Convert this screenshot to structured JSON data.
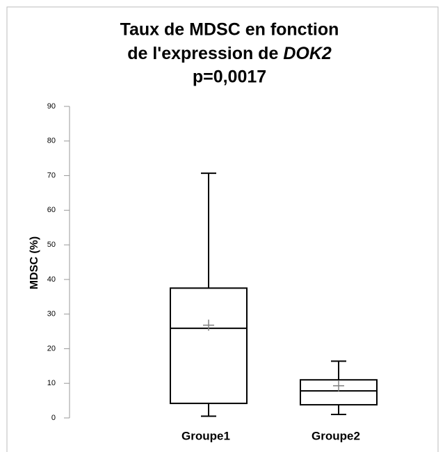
{
  "chart_data": {
    "type": "box",
    "title_line1": "Taux de MDSC en fonction",
    "title_line2": "de l'expression de",
    "title_italic": "DOK2",
    "subtitle": "p=0,0017",
    "y_label": "MDSC (%)",
    "categories": [
      "Groupe1",
      "Groupe2"
    ],
    "boxes": [
      {
        "min": 0.5,
        "q1": 4.2,
        "median": 25.9,
        "q3": 37.5,
        "max": 70.7,
        "mean": 26.8
      },
      {
        "min": 1,
        "q1": 3.8,
        "median": 7.8,
        "q3": 11,
        "max": 16.4,
        "mean": 9.3
      }
    ],
    "color": "#000000",
    "mean_color": "#808080",
    "ylim": [
      0,
      90
    ],
    "yticks": [
      0,
      10,
      20,
      30,
      40,
      50,
      60,
      70,
      80,
      90
    ]
  }
}
